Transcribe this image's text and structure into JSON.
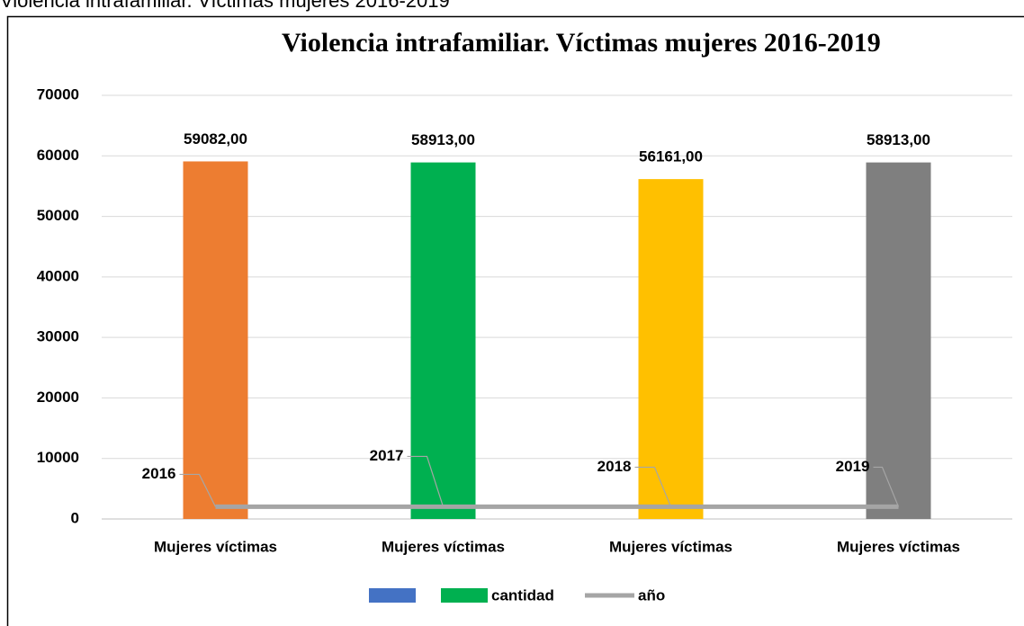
{
  "caption": "Violencia intrafamiliar. Víctimas mujeres 2016-2019",
  "chart_data": {
    "type": "bar",
    "title": "Violencia intrafamiliar. Víctimas mujeres 2016-2019",
    "categories": [
      "Mujeres víctimas",
      "Mujeres víctimas",
      "Mujeres víctimas",
      "Mujeres víctimas"
    ],
    "series": [
      {
        "name": "cantidad",
        "color": "#00b050",
        "colors": [
          "#ed7d31",
          "#00b050",
          "#ffc000",
          "#7f7f7f"
        ],
        "values": [
          59082,
          58913,
          56161,
          58913
        ],
        "value_labels": [
          "59082,00",
          "58913,00",
          "56161,00",
          "58913,00"
        ]
      },
      {
        "name": "año",
        "type": "line",
        "color": "#a5a5a5",
        "values": [
          2016,
          2017,
          2018,
          2019
        ]
      }
    ],
    "ylim": [
      0,
      70000
    ],
    "yticks": [
      0,
      10000,
      20000,
      30000,
      40000,
      50000,
      60000,
      70000
    ],
    "grid": true,
    "legend": "bottom"
  }
}
